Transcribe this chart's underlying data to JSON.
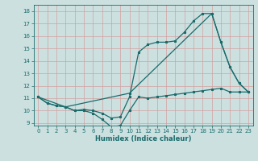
{
  "title": "",
  "xlabel": "Humidex (Indice chaleur)",
  "ylabel": "",
  "bg_color": "#cce0e0",
  "grid_color": "#b8d4d4",
  "line_color": "#1a6b6b",
  "ylim": [
    8.8,
    18.5
  ],
  "xlim": [
    -0.5,
    23.5
  ],
  "yticks": [
    9,
    10,
    11,
    12,
    13,
    14,
    15,
    16,
    17,
    18
  ],
  "xticks": [
    0,
    1,
    2,
    3,
    4,
    5,
    6,
    7,
    8,
    9,
    10,
    11,
    12,
    13,
    14,
    15,
    16,
    17,
    18,
    19,
    20,
    21,
    22,
    23
  ],
  "line1_x": [
    0,
    1,
    2,
    3,
    4,
    5,
    6,
    7,
    8,
    9,
    10,
    11,
    12,
    13,
    14,
    15,
    16,
    17,
    18,
    19,
    20,
    21,
    22,
    23
  ],
  "line1_y": [
    11.1,
    10.6,
    10.4,
    10.3,
    10.0,
    10.0,
    9.8,
    9.3,
    8.7,
    8.8,
    10.0,
    11.1,
    11.0,
    11.1,
    11.2,
    11.3,
    11.4,
    11.5,
    11.6,
    11.7,
    11.8,
    11.5,
    11.5,
    11.5
  ],
  "line2_x": [
    0,
    1,
    2,
    3,
    4,
    5,
    6,
    7,
    8,
    9,
    10,
    11,
    12,
    13,
    14,
    15,
    16,
    17,
    18,
    19,
    20,
    21,
    22,
    23
  ],
  "line2_y": [
    11.1,
    10.6,
    10.4,
    10.3,
    10.0,
    10.1,
    10.0,
    9.8,
    9.4,
    9.5,
    11.1,
    14.7,
    15.3,
    15.5,
    15.5,
    15.6,
    16.3,
    17.2,
    17.8,
    17.8,
    15.5,
    13.5,
    12.2,
    11.5
  ],
  "line3_x": [
    0,
    3,
    10,
    19,
    20,
    21,
    22,
    23
  ],
  "line3_y": [
    11.1,
    10.3,
    11.4,
    17.8,
    15.5,
    13.5,
    12.2,
    11.5
  ]
}
